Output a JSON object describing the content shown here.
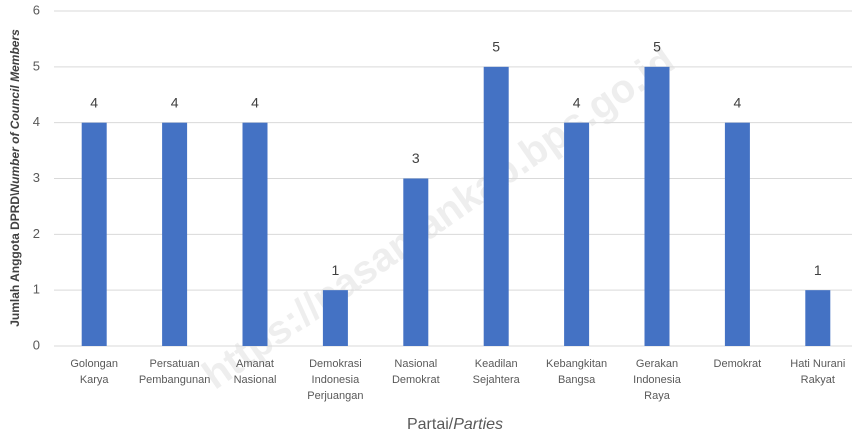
{
  "chart_data": {
    "type": "bar",
    "categories": [
      [
        "Golongan",
        "Karya"
      ],
      [
        "Persatuan",
        "Pembangunan"
      ],
      [
        "Amanat",
        "Nasional"
      ],
      [
        "Demokrasi",
        "Indonesia",
        "Perjuangan"
      ],
      [
        "Nasional",
        "Demokrat"
      ],
      [
        "Keadilan",
        "Sejahtera"
      ],
      [
        "Kebangkitan",
        "Bangsa"
      ],
      [
        "Gerakan",
        "Indonesia",
        "Raya"
      ],
      [
        "Demokrat"
      ],
      [
        "Hati Nurani",
        "Rakyat"
      ]
    ],
    "values": [
      4,
      4,
      4,
      1,
      3,
      5,
      4,
      5,
      4,
      1
    ],
    "color": "#4472c4",
    "ylim": [
      0,
      6
    ],
    "yticks": [
      0,
      1,
      2,
      3,
      4,
      5,
      6
    ],
    "grid": true,
    "x_label": "Partai/",
    "x_label_italic": "Parties",
    "y_label": "Jumlah Anggota DPRD\\",
    "y_label_italic": "Number of Council Members",
    "watermark": "https://pasamankab.bps.go.id"
  }
}
